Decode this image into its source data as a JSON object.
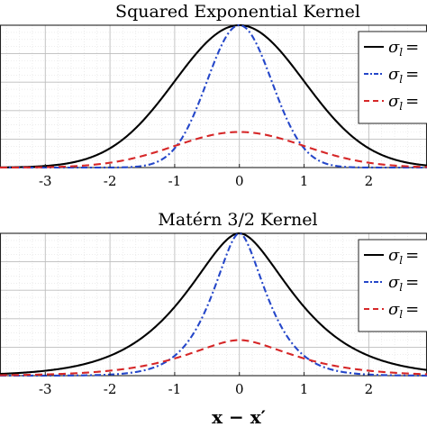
{
  "chart_data": [
    {
      "type": "line",
      "title": "Squared Exponential Kernel",
      "kernel": "squared_exponential",
      "xlim": [
        -3.7,
        2.9
      ],
      "ylim": [
        0,
        1
      ],
      "xticks": [
        "-3",
        "-2",
        "-1",
        "0",
        "1",
        "2"
      ],
      "grid": "on (major and minor)",
      "legend_position": "top-right",
      "series": [
        {
          "name": "σl =",
          "color": "#000000",
          "style": "solid",
          "amplitude": 1.0,
          "length_scale": 1.0
        },
        {
          "name": "σl =",
          "color": "#2547c9",
          "style": "dash-dot",
          "amplitude": 1.0,
          "length_scale": 0.5
        },
        {
          "name": "σl =",
          "color": "#d62728",
          "style": "dashed",
          "amplitude": 0.25,
          "length_scale": 1.0
        }
      ]
    },
    {
      "type": "line",
      "title": "Matérn 3/2 Kernel",
      "kernel": "matern_3_2",
      "xlim": [
        -3.7,
        2.9
      ],
      "ylim": [
        0,
        1
      ],
      "xticks": [
        "-3",
        "-2",
        "-1",
        "0",
        "1",
        "2"
      ],
      "xlabel": "x − x′",
      "grid": "on (major and minor)",
      "legend_position": "top-right",
      "series": [
        {
          "name": "σl =",
          "color": "#000000",
          "style": "solid",
          "amplitude": 1.0,
          "length_scale": 1.0
        },
        {
          "name": "σl =",
          "color": "#2547c9",
          "style": "dash-dot",
          "amplitude": 1.0,
          "length_scale": 0.5
        },
        {
          "name": "σl =",
          "color": "#d62728",
          "style": "dashed",
          "amplitude": 0.25,
          "length_scale": 1.0
        }
      ]
    }
  ]
}
